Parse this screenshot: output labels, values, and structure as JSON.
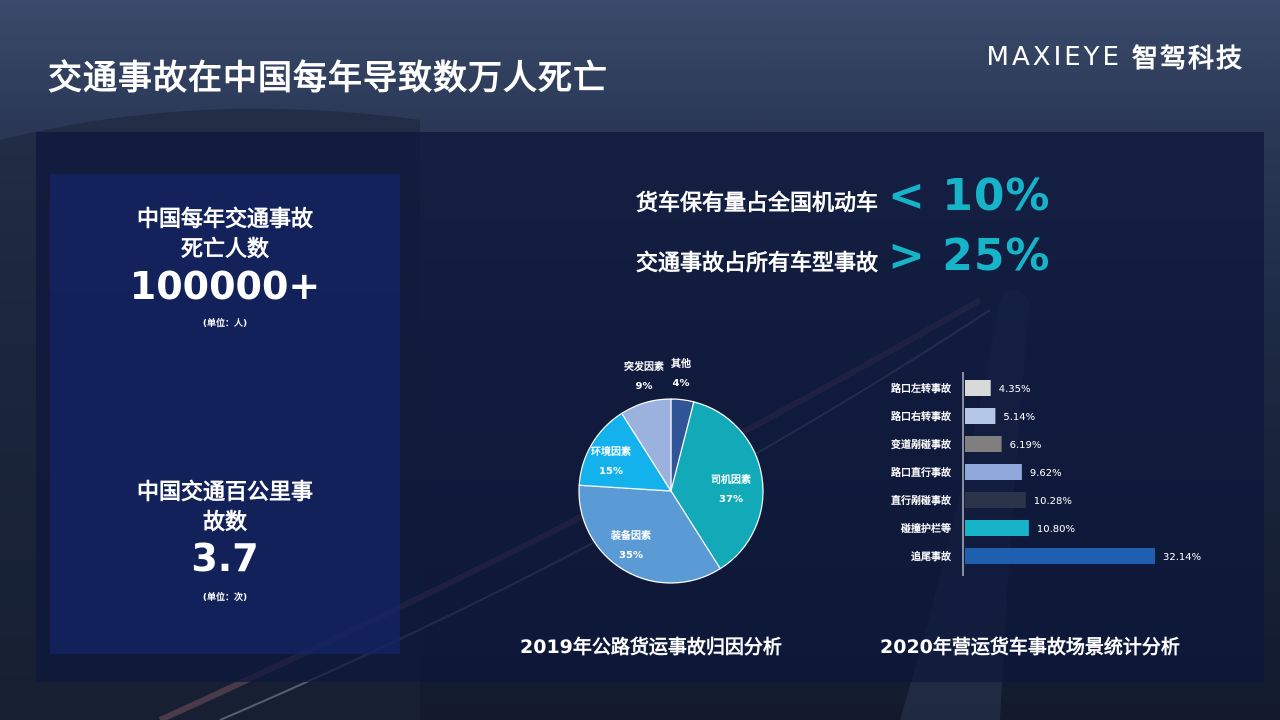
{
  "header": {
    "title": "交通事故在中国每年导致数万人死亡",
    "logo_mark": "MAXIEYE",
    "logo_cn": "智驾科技"
  },
  "left_stats": {
    "stat1_label_line1": "中国每年交通事故",
    "stat1_label_line2": "死亡人数",
    "stat1_value": "100000+",
    "stat1_unit": "(单位：人)",
    "stat2_label_line1": "中国交通百公里事",
    "stat2_label_line2": "故数",
    "stat2_value": "3.7",
    "stat2_unit": "(单位：次)"
  },
  "kpis": [
    {
      "label": "货车保有量占全国机动车",
      "value": "< 10%"
    },
    {
      "label": "交通事故占所有车型事故",
      "value": "> 25%"
    }
  ],
  "colors": {
    "accent": "#17b3c9"
  },
  "chart_data": [
    {
      "type": "pie",
      "title": "2019年公路货运事故归因分析",
      "slices": [
        {
          "name": "其他",
          "value": 4,
          "label": "4%",
          "color": "#2f5597"
        },
        {
          "name": "司机因素",
          "value": 37,
          "label": "37%",
          "color": "#12aab8"
        },
        {
          "name": "装备因素",
          "value": 35,
          "label": "35%",
          "color": "#5b9bd5"
        },
        {
          "name": "环境因素",
          "value": 15,
          "label": "15%",
          "color": "#14b2ec"
        },
        {
          "name": "突发因素",
          "value": 9,
          "label": "9%",
          "color": "#9bb1de"
        }
      ]
    },
    {
      "type": "bar",
      "orientation": "horizontal",
      "title": "2020年营运货车事故场景统计分析",
      "categories": [
        "路口左转事故",
        "路口右转事故",
        "变道剐碰事故",
        "路口直行事故",
        "直行剐碰事故",
        "碰撞护栏等",
        "追尾事故"
      ],
      "values": [
        4.35,
        5.14,
        6.19,
        9.62,
        10.28,
        10.8,
        32.14
      ],
      "labels": [
        "4.35%",
        "5.14%",
        "6.19%",
        "9.62%",
        "10.28%",
        "10.80%",
        "32.14%"
      ],
      "colors": [
        "#d9d9d9",
        "#b4c7e7",
        "#7f7f7f",
        "#8fa9dc",
        "#2b3448",
        "#17b3c9",
        "#1f5fb0"
      ]
    }
  ]
}
